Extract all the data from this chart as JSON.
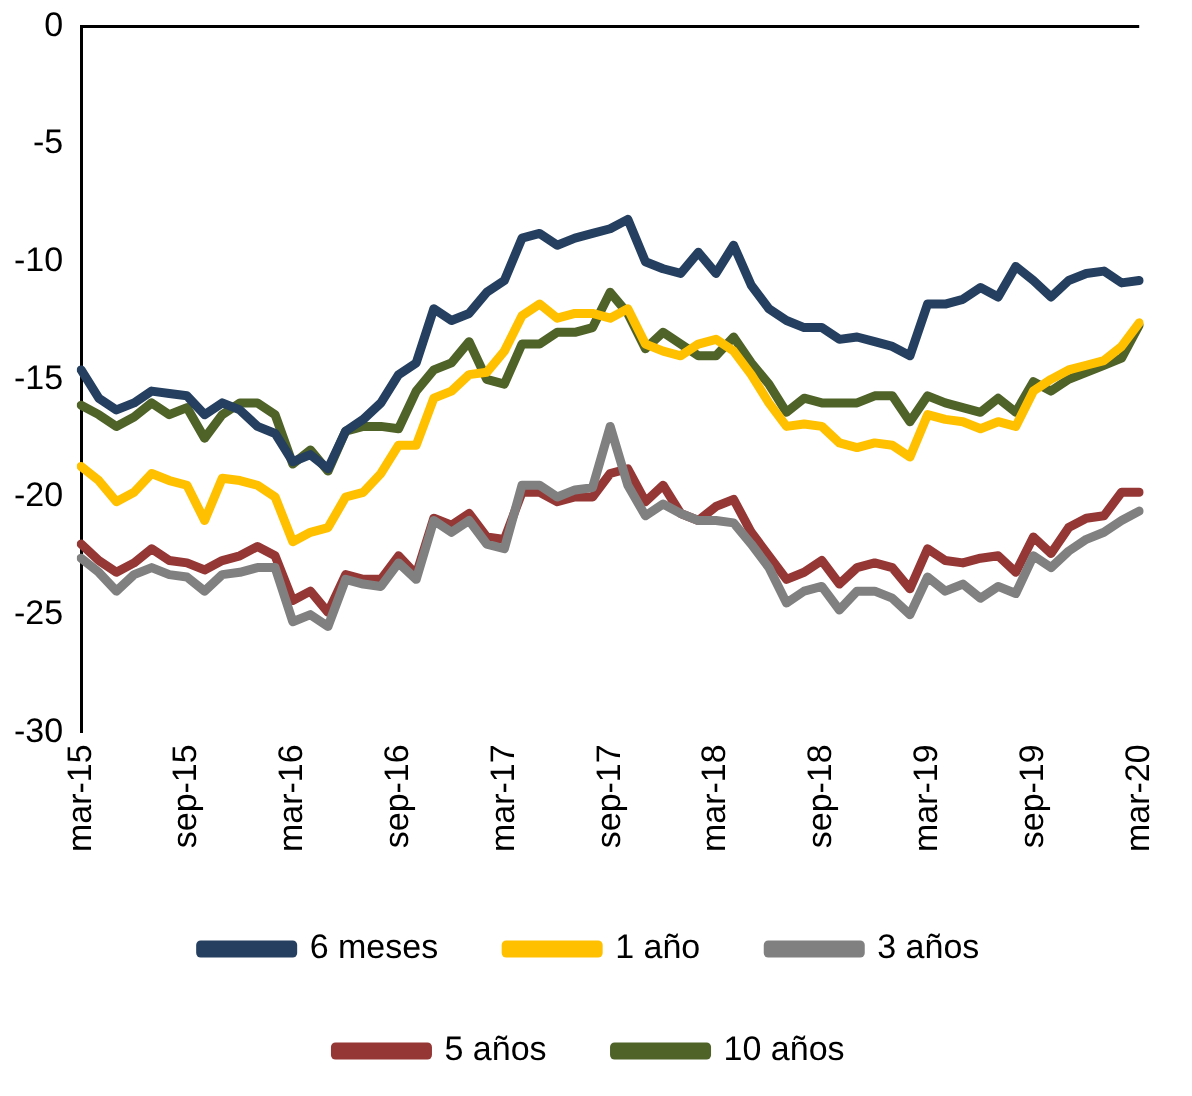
{
  "chart_data": {
    "type": "line",
    "categories": [
      "mar-15",
      null,
      null,
      null,
      null,
      null,
      "sep-15",
      null,
      null,
      null,
      null,
      null,
      "mar-16",
      null,
      null,
      null,
      null,
      null,
      "sep-16",
      null,
      null,
      null,
      null,
      null,
      "mar-17",
      null,
      null,
      null,
      null,
      null,
      "sep-17",
      null,
      null,
      null,
      null,
      null,
      "mar-18",
      null,
      null,
      null,
      null,
      null,
      "sep-18",
      null,
      null,
      null,
      null,
      null,
      "mar-19",
      null,
      null,
      null,
      null,
      null,
      "sep-19",
      null,
      null,
      null,
      null,
      null,
      "mar-20"
    ],
    "ylim": [
      -30,
      0
    ],
    "yticks": [
      -30,
      -25,
      -20,
      -15,
      -10,
      -5,
      0
    ],
    "grid": false,
    "legend": "bottom",
    "marker": "none",
    "line_style": "solid",
    "series": [
      {
        "name": "6 meses",
        "color": "#243f60",
        "values": [
          -14.6,
          -15.8,
          -16.3,
          -16.0,
          -15.5,
          -15.6,
          -15.7,
          -16.5,
          -16.0,
          -16.3,
          -17.0,
          -17.3,
          -18.5,
          -18.2,
          -18.8,
          -17.2,
          -16.7,
          -16.0,
          -14.8,
          -14.3,
          -12.0,
          -12.5,
          -12.2,
          -11.3,
          -10.8,
          -9.0,
          -8.8,
          -9.3,
          -9.0,
          -8.8,
          -8.6,
          -8.2,
          -10.0,
          -10.3,
          -10.5,
          -9.6,
          -10.5,
          -9.3,
          -11.0,
          -12.0,
          -12.5,
          -12.8,
          -12.8,
          -13.3,
          -13.2,
          -13.4,
          -13.6,
          -14.0,
          -11.8,
          -11.8,
          -11.6,
          -11.1,
          -11.5,
          -10.2,
          -10.8,
          -11.5,
          -10.8,
          -10.5,
          -10.4,
          -10.9,
          -10.8
        ]
      },
      {
        "name": "1 año",
        "color": "#ffc000",
        "values": [
          -18.7,
          -19.3,
          -20.2,
          -19.8,
          -19.0,
          -19.3,
          -19.5,
          -21.0,
          -19.2,
          -19.3,
          -19.5,
          -20.0,
          -21.9,
          -21.5,
          -21.3,
          -20.0,
          -19.8,
          -19.0,
          -17.8,
          -17.8,
          -15.8,
          -15.5,
          -14.8,
          -14.7,
          -13.8,
          -12.3,
          -11.8,
          -12.4,
          -12.2,
          -12.2,
          -12.4,
          -12.0,
          -13.5,
          -13.8,
          -14.0,
          -13.5,
          -13.3,
          -13.8,
          -14.8,
          -16.0,
          -17.0,
          -16.9,
          -17.0,
          -17.7,
          -17.9,
          -17.7,
          -17.8,
          -18.3,
          -16.5,
          -16.7,
          -16.8,
          -17.1,
          -16.8,
          -17.0,
          -15.5,
          -15.0,
          -14.6,
          -14.4,
          -14.2,
          -13.6,
          -12.6
        ]
      },
      {
        "name": "3 años",
        "color": "#808080",
        "values": [
          -22.6,
          -23.2,
          -24.0,
          -23.3,
          -23.0,
          -23.3,
          -23.4,
          -24.0,
          -23.3,
          -23.2,
          -23.0,
          -23.0,
          -25.3,
          -25.0,
          -25.5,
          -23.5,
          -23.7,
          -23.8,
          -22.8,
          -23.5,
          -21.0,
          -21.5,
          -21.0,
          -22.0,
          -22.2,
          -19.5,
          -19.5,
          -20.0,
          -19.7,
          -19.6,
          -17.0,
          -19.5,
          -20.8,
          -20.3,
          -20.7,
          -21.0,
          -21.0,
          -21.1,
          -22.0,
          -23.0,
          -24.5,
          -24.0,
          -23.8,
          -24.8,
          -24.0,
          -24.0,
          -24.3,
          -25.0,
          -23.4,
          -24.0,
          -23.7,
          -24.3,
          -23.8,
          -24.1,
          -22.5,
          -23.0,
          -22.3,
          -21.8,
          -21.5,
          -21.0,
          -20.6
        ]
      },
      {
        "name": "5 años",
        "color": "#953735",
        "values": [
          -22.0,
          -22.7,
          -23.2,
          -22.8,
          -22.2,
          -22.7,
          -22.8,
          -23.1,
          -22.7,
          -22.5,
          -22.1,
          -22.5,
          -24.4,
          -24.0,
          -24.9,
          -23.3,
          -23.5,
          -23.5,
          -22.5,
          -23.3,
          -20.9,
          -21.2,
          -20.7,
          -21.7,
          -21.8,
          -19.8,
          -19.8,
          -20.2,
          -20.0,
          -20.0,
          -19.0,
          -18.8,
          -20.2,
          -19.5,
          -20.7,
          -21.0,
          -20.4,
          -20.1,
          -21.5,
          -22.5,
          -23.5,
          -23.2,
          -22.7,
          -23.7,
          -23.0,
          -22.8,
          -23.0,
          -23.9,
          -22.2,
          -22.7,
          -22.8,
          -22.6,
          -22.5,
          -23.2,
          -21.7,
          -22.4,
          -21.3,
          -20.9,
          -20.8,
          -19.8,
          -19.8
        ]
      },
      {
        "name": "10 años",
        "color": "#4f6228",
        "values": [
          -16.1,
          -16.5,
          -17.0,
          -16.6,
          -16.0,
          -16.5,
          -16.2,
          -17.5,
          -16.5,
          -16.0,
          -16.0,
          -16.5,
          -18.6,
          -18.0,
          -18.9,
          -17.2,
          -17.0,
          -17.0,
          -17.1,
          -15.5,
          -14.6,
          -14.3,
          -13.4,
          -15.0,
          -15.2,
          -13.5,
          -13.5,
          -13.0,
          -13.0,
          -12.8,
          -11.3,
          -12.2,
          -13.7,
          -13.0,
          -13.5,
          -14.0,
          -14.0,
          -13.2,
          -14.3,
          -15.2,
          -16.4,
          -15.8,
          -16.0,
          -16.0,
          -16.0,
          -15.7,
          -15.7,
          -16.8,
          -15.7,
          -16.0,
          -16.2,
          -16.4,
          -15.8,
          -16.4,
          -15.1,
          -15.5,
          -15.0,
          -14.7,
          -14.4,
          -14.1,
          -12.7
        ]
      }
    ]
  }
}
